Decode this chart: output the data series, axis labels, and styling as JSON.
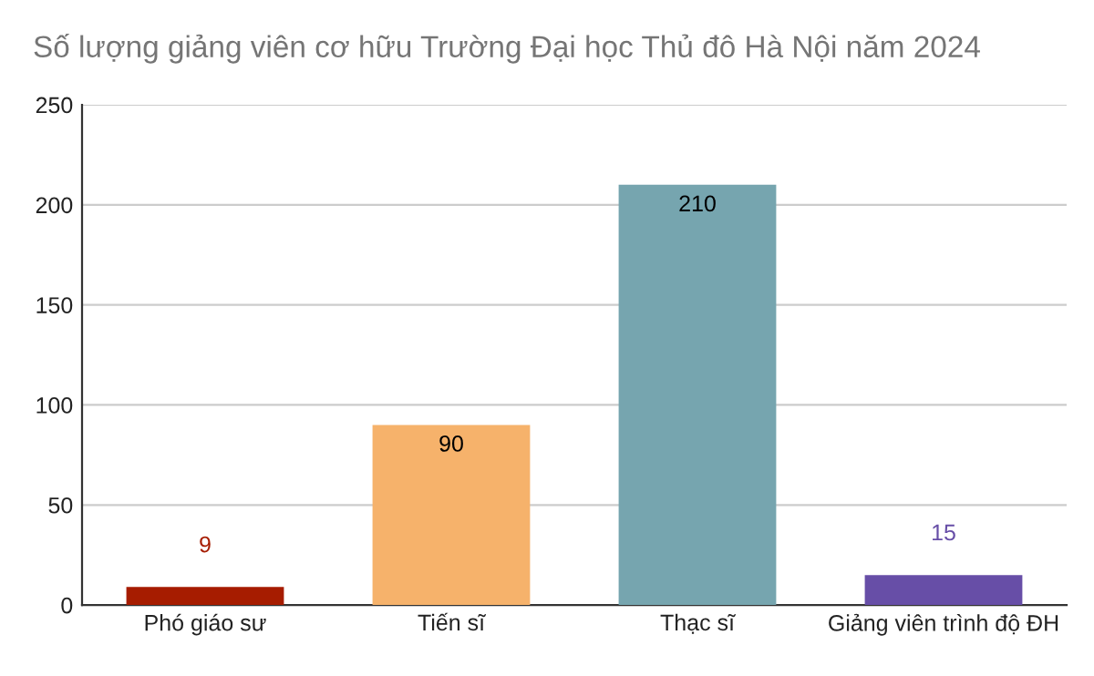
{
  "chart_data": {
    "type": "bar",
    "title": "Số lượng giảng viên cơ hữu Trường Đại học Thủ đô Hà Nội năm 2024",
    "categories": [
      "Phó giáo sư",
      "Tiến sĩ",
      "Thạc sĩ",
      "Giảng viên trình độ ĐH"
    ],
    "values": [
      9,
      90,
      210,
      15
    ],
    "colors": [
      "#a61c00",
      "#f6b26b",
      "#76a5af",
      "#674ea7"
    ],
    "ylim": [
      0,
      250
    ],
    "yticks": [
      0,
      50,
      100,
      150,
      200,
      250
    ],
    "grid": "y",
    "data_labels": true,
    "legend": false
  }
}
